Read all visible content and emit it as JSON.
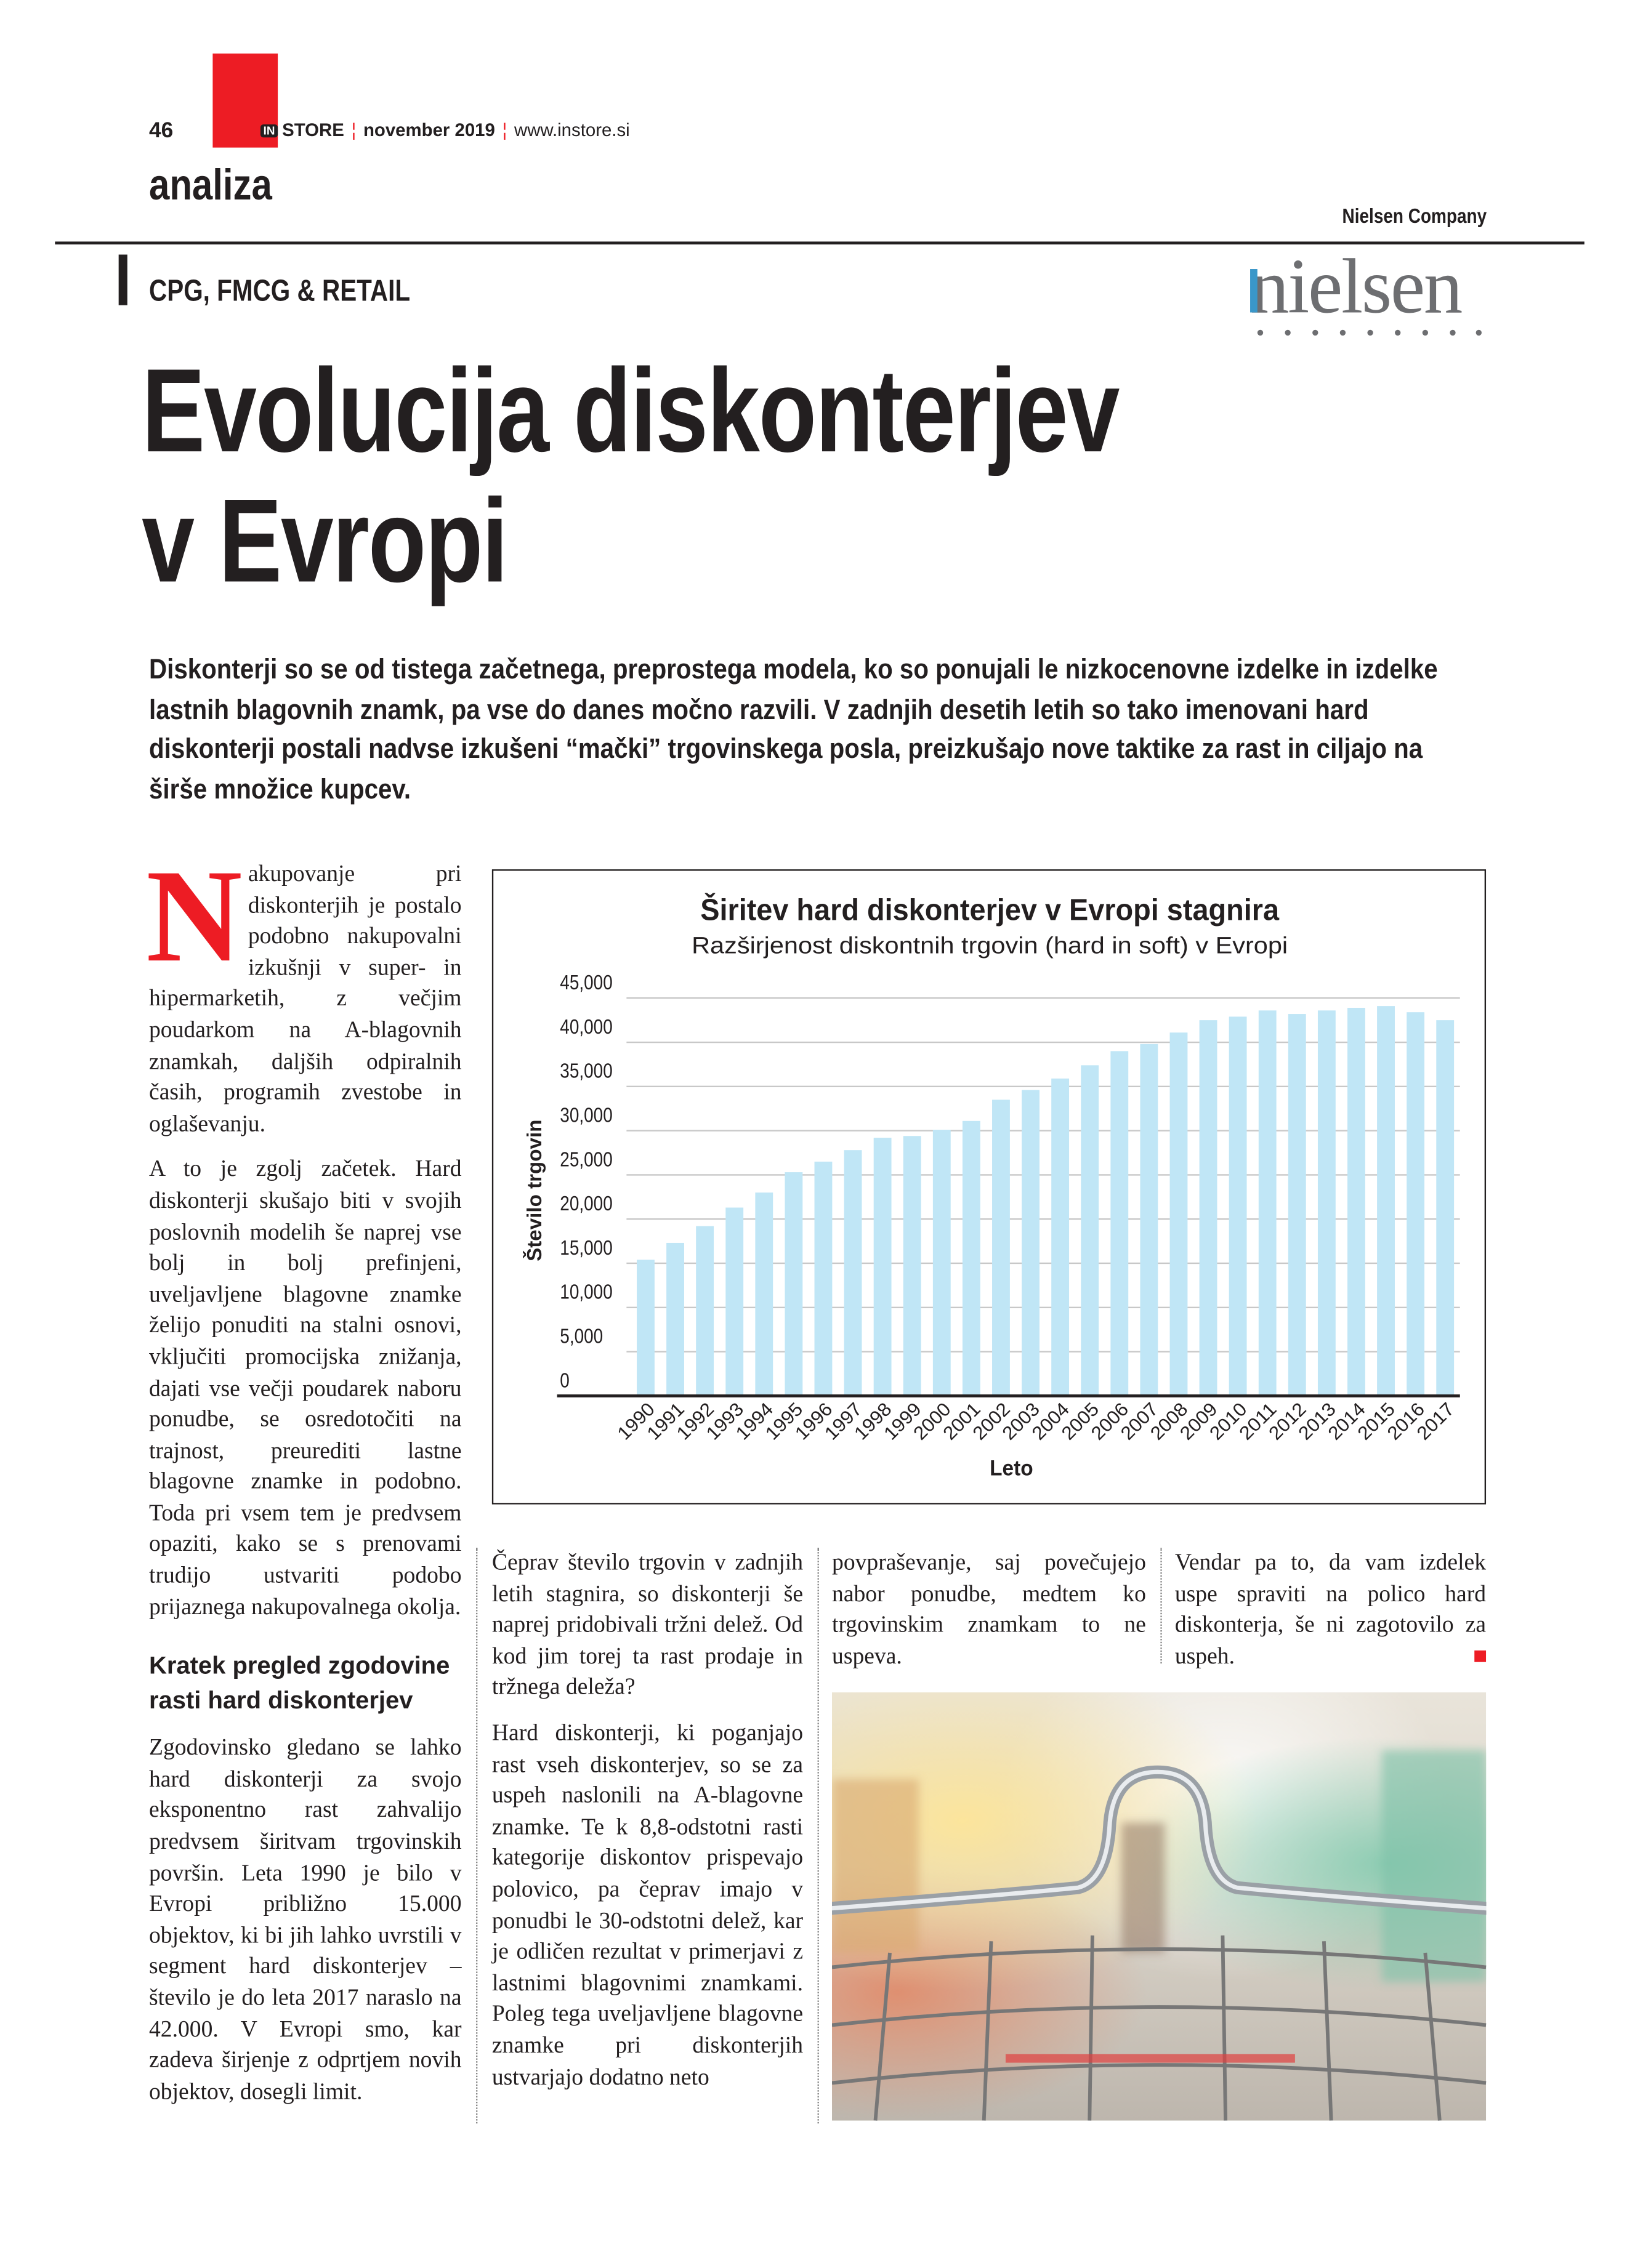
{
  "header": {
    "page_number": "46",
    "magazine_logo_in": "IN",
    "magazine_name": "STORE",
    "issue": "november 2019",
    "website": "www.instore.si",
    "section": "analiza",
    "company": "Nielsen Company",
    "category": "CPG, FMCG & RETAIL",
    "logo_text": "nielsen",
    "colors": {
      "accent": "#ed1c24",
      "text": "#231f20",
      "bar": "#c0e6f6"
    }
  },
  "article": {
    "title_line1": "Evolucija diskonterjev",
    "title_line2": "v Evropi",
    "lead": "Diskonterji so se od tistega začetnega, preprostega modela, ko so ponujali le nizkocenovne izdelke in izdelke lastnih blagovnih znamk, pa vse do danes močno razvili. V zadnjih desetih letih so tako imenovani hard diskonterji postali nadvse izkušeni “mački” trgovinskega posla, preizkušajo nove taktike za rast in ciljajo na širše množice kupcev.",
    "dropcap": "N",
    "p1": "akupovanje pri diskonterjih je postalo podobno nakupovalni izkušnji v super- in hipermarketih, z večjim poudarkom na A-blagovnih znamkah, daljših odpiralnih časih, programih zvestobe in oglaševanju.",
    "p2": "A to je zgolj začetek. Hard diskonterji skušajo biti v svojih poslovnih modelih še naprej vse bolj in bolj prefinjeni, uveljavljene blagovne znamke želijo ponuditi na stalni osnovi, vključiti promocijska znižanja, dajati vse večji poudarek naboru ponudbe, se osredotočiti na trajnost, preurediti lastne blagovne znamke in podobno. Toda pri vsem tem je predvsem opaziti, kako se s prenovami trudijo ustvariti podobo prijaznega nakupovalnega okolja.",
    "subhead": "Kratek pregled zgodovine rasti hard diskonterjev",
    "p3": "Zgodovinsko gledano se lahko hard diskonterji za svojo eksponentno rast zahvalijo predvsem širitvam trgovinskih površin. Leta 1990 je bilo v Evropi približno 15.000 objektov, ki bi jih lahko uvrstili v segment hard diskonterjev – število je do leta 2017 naraslo na 42.000. V Evropi smo, kar zadeva širjenje z odprtjem novih objektov, dosegli limit.",
    "p4": "Čeprav število trgovin v zadnjih letih stagnira, so diskonterji še naprej pridobivali tržni delež. Od kod jim torej ta rast prodaje in tržnega deleža?",
    "p5": "Hard diskonterji, ki poganjajo rast vseh diskonterjev, so se za uspeh naslonili na A-blagovne znamke. Te k 8,8-odstotni rasti kategorije diskontov prispevajo polovico, pa čeprav imajo v ponudbi le 30-odstotni delež, kar je odličen rezultat v primerjavi z lastnimi blagovnimi znamkami. Poleg tega uveljavljene blagovne znamke pri diskonterjih ustvarjajo dodatno neto",
    "p6": "povpraševanje, saj povečujejo nabor ponudbe, medtem ko trgovinskim znamkam to ne uspeva.",
    "p7": "Vendar pa to, da vam izdelek uspe spraviti na polico hard diskonterja, še ni zagotovilo za uspeh."
  },
  "chart_data": {
    "type": "bar",
    "title": "Širitev hard diskonterjev v Evropi stagnira",
    "subtitle": "Razširjenost diskontnih trgovin (hard in soft) v Evropi",
    "xlabel": "Leto",
    "ylabel": "Število trgovin",
    "ylim": [
      0,
      45000
    ],
    "yticks": [
      "0",
      "5,000",
      "10,000",
      "15,000",
      "20,000",
      "25,000",
      "30,000",
      "35,000",
      "40,000",
      "45,000"
    ],
    "grid": true,
    "categories": [
      "1990",
      "1991",
      "1992",
      "1993",
      "1994",
      "1995",
      "1996",
      "1997",
      "1998",
      "1999",
      "2000",
      "2001",
      "2002",
      "2003",
      "2004",
      "2005",
      "2006",
      "2007",
      "2008",
      "2009",
      "2010",
      "2011",
      "2012",
      "2013",
      "2014",
      "2015",
      "2016",
      "2017"
    ],
    "values": [
      15400,
      17300,
      19200,
      21300,
      23000,
      25300,
      26500,
      27800,
      29200,
      29400,
      30100,
      31100,
      33500,
      34600,
      35900,
      37400,
      39000,
      39800,
      41100,
      42500,
      42900,
      43600,
      43200,
      43600,
      43900,
      44100,
      43400,
      42500
    ]
  }
}
